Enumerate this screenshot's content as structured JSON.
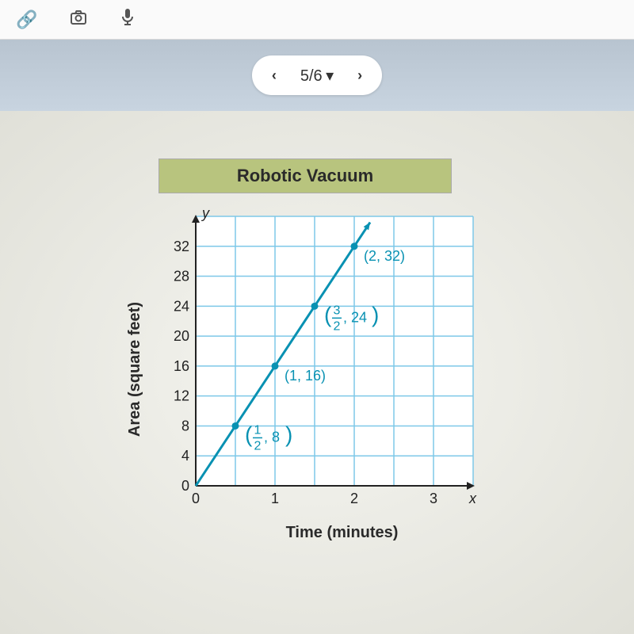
{
  "pager": {
    "prev_label": "‹",
    "text": "5/6",
    "dropdown_glyph": "▾",
    "next_label": "›"
  },
  "chart": {
    "type": "line",
    "title": "Robotic Vacuum",
    "xlabel": "Time (minutes)",
    "ylabel": "Area (square feet)",
    "xlim": [
      0,
      3.5
    ],
    "ylim": [
      0,
      36
    ],
    "xtick_values": [
      0,
      1,
      2,
      3
    ],
    "xtick_labels": [
      "0",
      "1",
      "2",
      "3"
    ],
    "x_axis_end_label": "x",
    "ytick_values": [
      0,
      4,
      8,
      12,
      16,
      20,
      24,
      28,
      32
    ],
    "ytick_labels": [
      "0",
      "4",
      "8",
      "12",
      "16",
      "20",
      "24",
      "28",
      "32"
    ],
    "y_axis_top_label": "y",
    "grid_color": "#7ec8e8",
    "grid_width": 1.5,
    "background_color": "#ffffff",
    "line_color": "#0891b2",
    "line_width": 3,
    "point_color": "#0891b2",
    "point_radius": 4.5,
    "label_color": "#0891b2",
    "label_fontsize": 18,
    "tick_fontsize": 18,
    "tick_color": "#222222",
    "title_fontsize": 22,
    "axis_label_fontsize": 20,
    "points": [
      {
        "x": 0.5,
        "y": 8,
        "label_plain": "",
        "label_frac_top": "1",
        "label_frac_bot": "2",
        "label_rest": ", 8"
      },
      {
        "x": 1,
        "y": 16,
        "label_plain": "(1, 16)"
      },
      {
        "x": 1.5,
        "y": 24,
        "label_plain": "",
        "label_frac_top": "3",
        "label_frac_bot": "2",
        "label_rest": ", 24"
      },
      {
        "x": 2,
        "y": 32,
        "label_plain": "(2, 32)"
      }
    ],
    "line_start": {
      "x": 0,
      "y": 0
    },
    "line_end": {
      "x": 2.2,
      "y": 35.2
    }
  },
  "colors": {
    "header_bg": "#b8c4d0",
    "title_bg": "#b8c47e",
    "content_bg": "#f0f0e8"
  }
}
